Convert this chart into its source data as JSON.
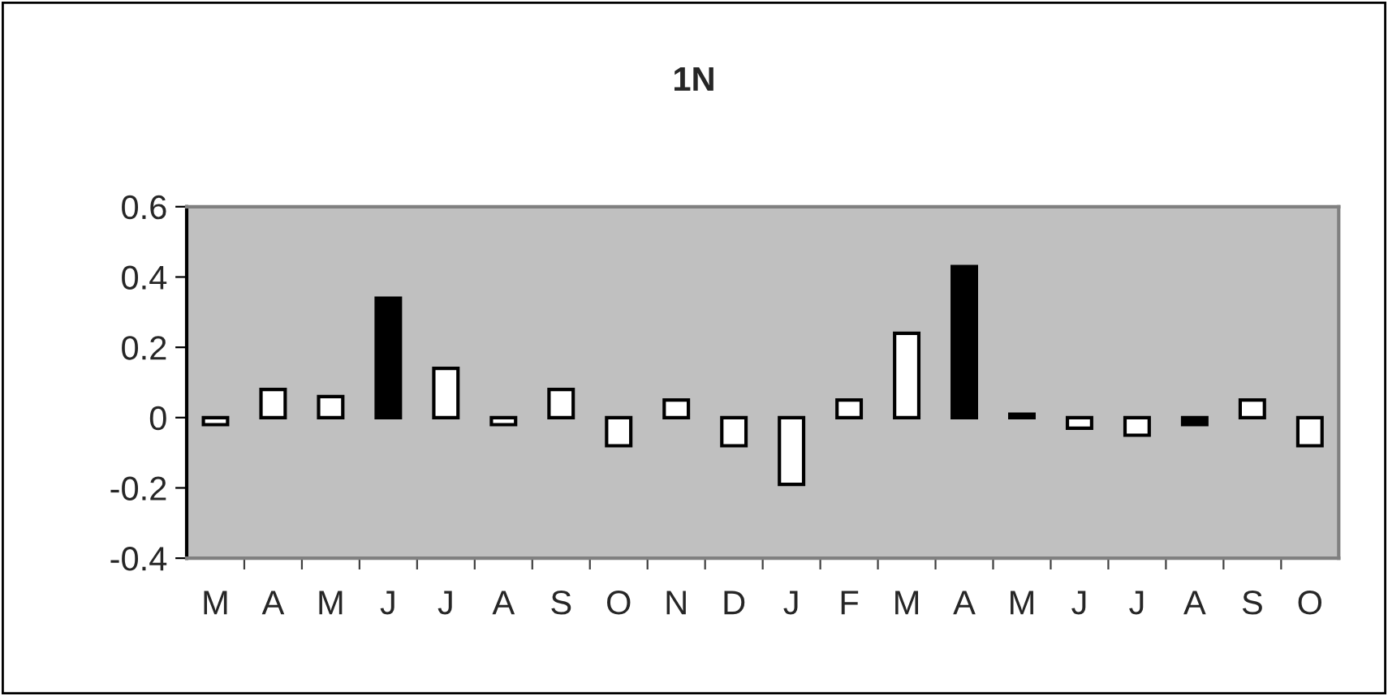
{
  "chart_data": {
    "type": "bar",
    "title": "1N",
    "categories": [
      "M",
      "A",
      "M",
      "J",
      "J",
      "A",
      "S",
      "O",
      "N",
      "D",
      "J",
      "F",
      "M",
      "A",
      "M",
      "J",
      "J",
      "A",
      "S",
      "O"
    ],
    "values": [
      -0.02,
      0.08,
      0.06,
      0.34,
      0.14,
      -0.02,
      0.08,
      -0.08,
      0.05,
      -0.08,
      -0.19,
      0.05,
      0.24,
      0.43,
      0.01,
      -0.03,
      -0.05,
      -0.02,
      0.05,
      -0.08
    ],
    "colors": [
      "#ffffff",
      "#ffffff",
      "#ffffff",
      "#000000",
      "#ffffff",
      "#ffffff",
      "#ffffff",
      "#ffffff",
      "#ffffff",
      "#ffffff",
      "#ffffff",
      "#ffffff",
      "#ffffff",
      "#000000",
      "#000000",
      "#ffffff",
      "#ffffff",
      "#000000",
      "#ffffff",
      "#ffffff"
    ],
    "ylim": [
      -0.4,
      0.6
    ],
    "yticks": [
      -0.4,
      -0.2,
      0,
      0.2,
      0.4,
      0.6
    ],
    "grid": false,
    "legend": false
  }
}
